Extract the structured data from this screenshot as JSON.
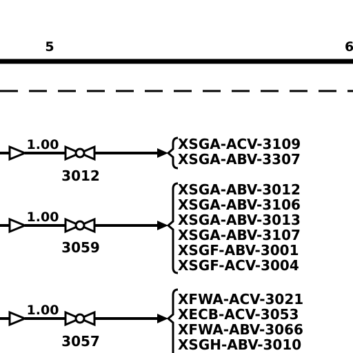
{
  "header": {
    "columns": [
      "5",
      "6"
    ]
  },
  "rows": [
    {
      "flow_value": "1.00",
      "valve_tag": "3012",
      "destinations": [
        "XSGA-ACV-3109",
        "XSGA-ABV-3307"
      ]
    },
    {
      "flow_value": "1.00",
      "valve_tag": "3059",
      "destinations": [
        "XSGA-ABV-3012",
        "XSGA-ABV-3106",
        "XSGA-ABV-3013",
        "XSGA-ABV-3107",
        "XSGF-ABV-3001",
        "XSGF-ACV-3004"
      ]
    },
    {
      "flow_value": "1.00",
      "valve_tag": "3057",
      "destinations": [
        "XFWA-ACV-3021",
        "XECB-ACV-3053",
        "XFWA-ABV-3066",
        "XSGH-ABV-3010"
      ]
    }
  ],
  "colors": {
    "ink": "#000000",
    "background": "#ffffff"
  }
}
